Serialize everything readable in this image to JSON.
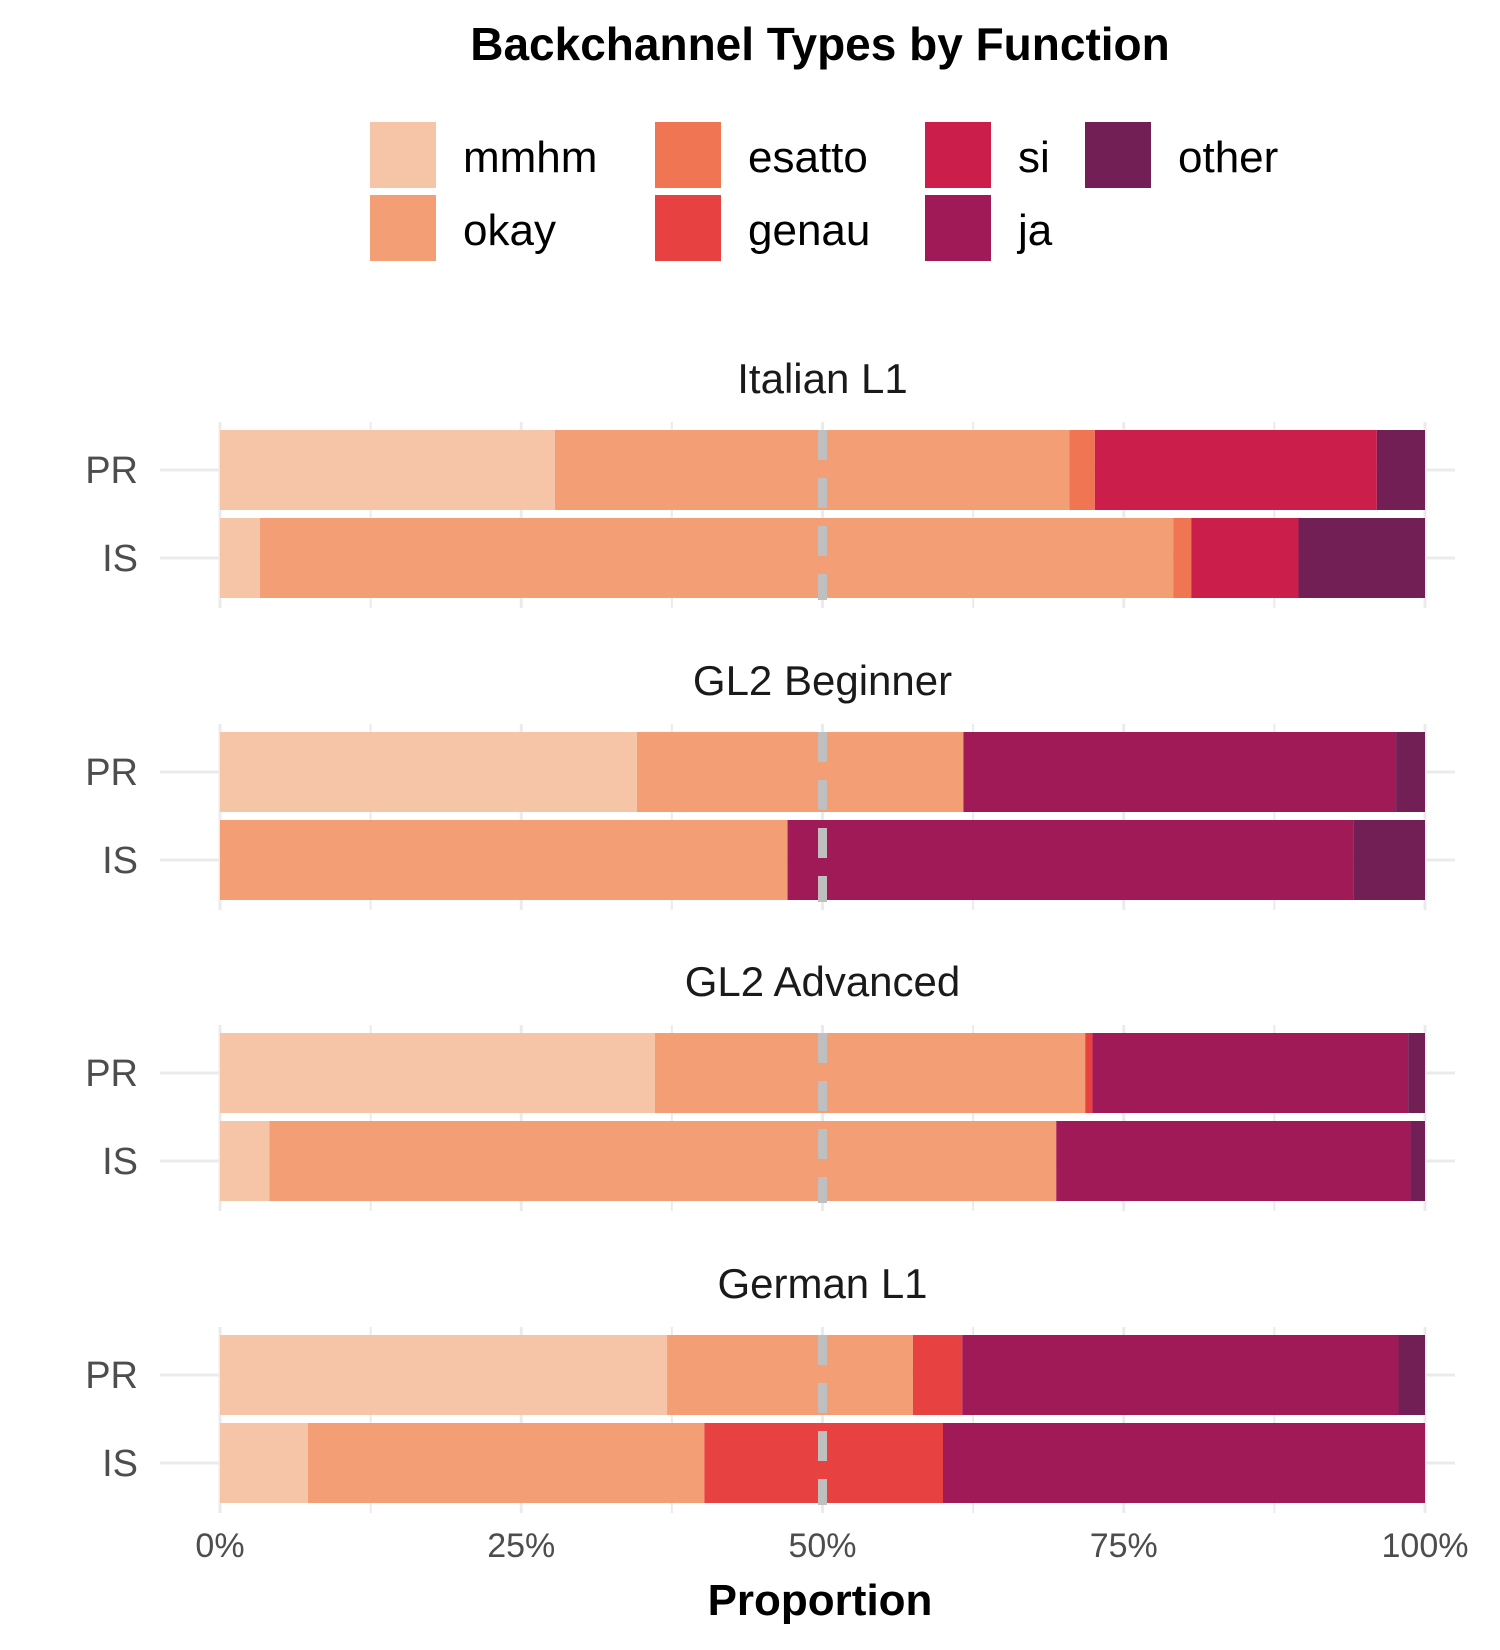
{
  "chart_data": {
    "type": "bar",
    "orientation": "horizontal",
    "stacked": true,
    "title": "Backchannel Types by Function",
    "xlabel": "Proportion",
    "ylabel": "",
    "xlim": [
      0,
      100
    ],
    "x_ticks": [
      "0%",
      "25%",
      "50%",
      "75%",
      "100%"
    ],
    "x_tick_values": [
      0,
      25,
      50,
      75,
      100
    ],
    "reference_line": 50,
    "grid": true,
    "legend_position": "top",
    "categories": [
      "mmhm",
      "okay",
      "esatto",
      "genau",
      "si",
      "ja",
      "other"
    ],
    "colors": {
      "mmhm": "#F6C5A8",
      "okay": "#F49E75",
      "esatto": "#F07553",
      "genau": "#E84141",
      "si": "#CC1E4B",
      "ja": "#A11A58",
      "other": "#721F56"
    },
    "rows": [
      "PR",
      "IS"
    ],
    "facets": [
      {
        "name": "Italian L1",
        "bars": [
          {
            "label": "PR",
            "values": {
              "mmhm": 27.8,
              "okay": 42.7,
              "esatto": 2.1,
              "genau": 0,
              "si": 23.4,
              "ja": 0,
              "other": 4.0
            }
          },
          {
            "label": "IS",
            "values": {
              "mmhm": 3.3,
              "okay": 75.8,
              "esatto": 1.5,
              "genau": 0,
              "si": 8.9,
              "ja": 0,
              "other": 10.5
            }
          }
        ]
      },
      {
        "name": "GL2 Beginner",
        "bars": [
          {
            "label": "PR",
            "values": {
              "mmhm": 34.6,
              "okay": 27.1,
              "esatto": 0,
              "genau": 0,
              "si": 0,
              "ja": 35.9,
              "other": 2.4
            }
          },
          {
            "label": "IS",
            "values": {
              "mmhm": 0,
              "okay": 47.1,
              "esatto": 0,
              "genau": 0,
              "si": 0,
              "ja": 47.0,
              "other": 5.9
            }
          }
        ]
      },
      {
        "name": "GL2 Advanced",
        "bars": [
          {
            "label": "PR",
            "values": {
              "mmhm": 36.1,
              "okay": 35.7,
              "esatto": 0,
              "genau": 0.6,
              "si": 0,
              "ja": 26.2,
              "other": 1.4
            }
          },
          {
            "label": "IS",
            "values": {
              "mmhm": 4.1,
              "okay": 65.3,
              "esatto": 0,
              "genau": 0,
              "si": 0,
              "ja": 29.4,
              "other": 1.2
            }
          }
        ]
      },
      {
        "name": "German L1",
        "bars": [
          {
            "label": "PR",
            "values": {
              "mmhm": 37.1,
              "okay": 20.4,
              "esatto": 0,
              "genau": 4.1,
              "si": 0,
              "ja": 36.2,
              "other": 2.2
            }
          },
          {
            "label": "IS",
            "values": {
              "mmhm": 7.3,
              "okay": 32.9,
              "esatto": 0,
              "genau": 19.8,
              "si": 0,
              "ja": 40.0,
              "other": 0
            }
          }
        ]
      }
    ]
  }
}
